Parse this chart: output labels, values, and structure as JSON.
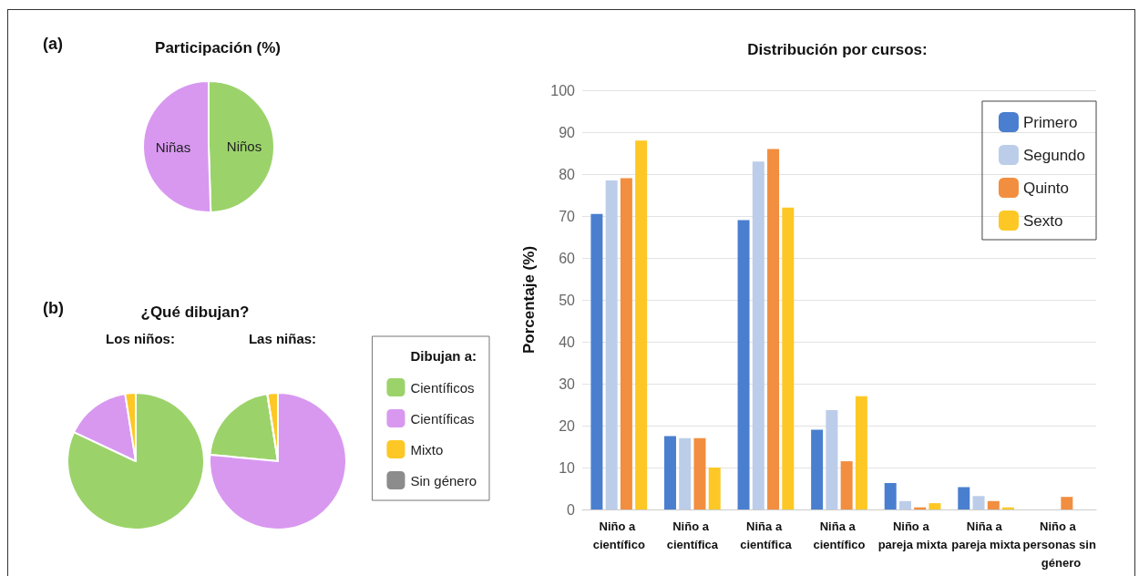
{
  "chart_data": [
    {
      "type": "pie",
      "title": "Participación (%)",
      "annotations": [
        "(a)"
      ],
      "categories": [
        "Niños",
        "Niñas"
      ],
      "values": [
        49.5,
        50.5
      ],
      "colors": [
        "#9bd36a",
        "#d898f0"
      ],
      "legend": false
    },
    {
      "type": "pie",
      "title": "¿Qué dibujan?",
      "annotations": [
        "(b)"
      ],
      "legend_title": "Dibujan a:",
      "legend": "right",
      "categories": [
        "Científicos",
        "Científicas",
        "Mixto",
        "Sin género"
      ],
      "colors": [
        "#9bd36a",
        "#d898f0",
        "#fdc825",
        "#8c8c8c"
      ],
      "series": [
        {
          "name": "Los niños:",
          "values": [
            82,
            15.5,
            2.5,
            0
          ]
        },
        {
          "name": "Las niñas:",
          "values": [
            21,
            76.5,
            2.5,
            0
          ]
        }
      ]
    },
    {
      "type": "bar",
      "title": "Distribución por cursos:",
      "ylabel": "Porcentaje (%)",
      "categories": [
        "Niño a científico",
        "Niño a científica",
        "Niña a científica",
        "Niña a científico",
        "Niño a pareja mixta",
        "Niña a pareja mixta",
        "Niño a personas sin género"
      ],
      "series": [
        {
          "name": "Primero",
          "color": "#4a7fcf",
          "values": [
            70.5,
            17.5,
            69,
            19,
            6.3,
            5.3,
            0
          ]
        },
        {
          "name": "Segundo",
          "color": "#bccde9",
          "values": [
            78.5,
            17,
            83,
            23.7,
            2,
            3.2,
            0
          ]
        },
        {
          "name": "Quinto",
          "color": "#f28e3f",
          "values": [
            79,
            17,
            86,
            11.5,
            0.5,
            2,
            3
          ]
        },
        {
          "name": "Sexto",
          "color": "#fdc825",
          "values": [
            88,
            10,
            72,
            27,
            1.5,
            0.5,
            0
          ]
        }
      ],
      "ylim": [
        0,
        100
      ],
      "yticks": [
        0,
        10,
        20,
        30,
        40,
        50,
        60,
        70,
        80,
        90,
        100
      ],
      "grid": "y",
      "legend": "top right"
    }
  ]
}
